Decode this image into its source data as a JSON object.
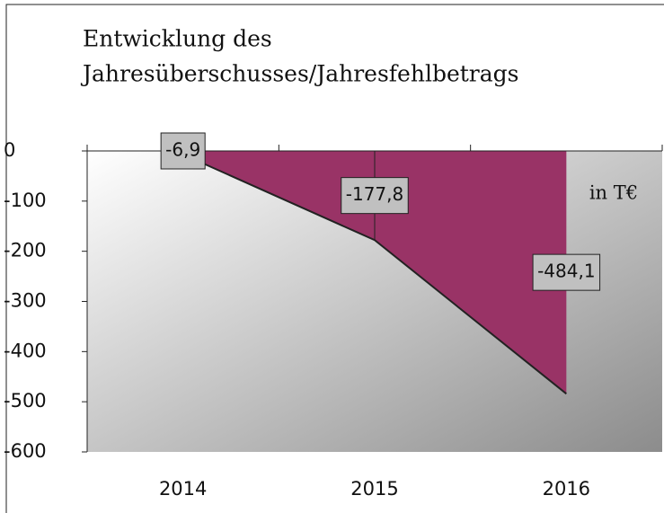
{
  "chart_data": {
    "type": "area",
    "title": [
      "Entwicklung des",
      "Jahresüberschusses/Jahresfehlbetrags"
    ],
    "annotation": "in T€",
    "categories": [
      "2014",
      "2015",
      "2016"
    ],
    "values": [
      -6.9,
      -177.8,
      -484.1
    ],
    "value_labels": [
      "-6,9",
      "-177,8",
      "-484,1"
    ],
    "color": "#993366",
    "ylim": [
      -600,
      0
    ],
    "yticks": [
      0,
      -100,
      -200,
      -300,
      -400,
      -500,
      -600
    ]
  }
}
